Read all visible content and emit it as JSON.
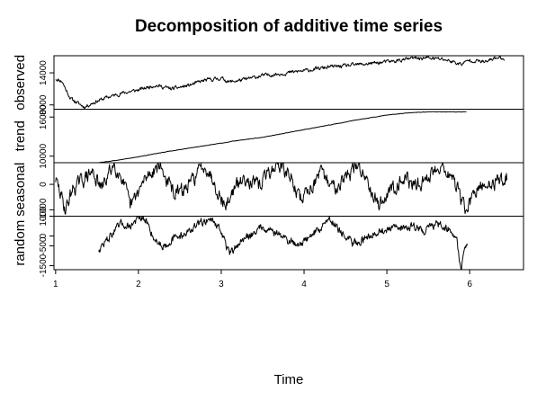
{
  "chart_data": {
    "type": "line",
    "title": "Decomposition of additive time series",
    "xlabel": "Time",
    "xlim": [
      0.98,
      6.65
    ],
    "x_ticks": [
      1,
      2,
      3,
      4,
      5,
      6
    ],
    "grid": false,
    "panels": [
      {
        "name": "observed",
        "ylabel": "observed",
        "ylim": [
          7200,
          17200
        ],
        "y_ticks": [
          8000,
          14000
        ],
        "y_tick_labels": [
          "8000",
          "14000"
        ],
        "x_range": [
          1.0,
          6.42
        ],
        "keypoints": [
          [
            1.0,
            12900
          ],
          [
            1.08,
            12400
          ],
          [
            1.12,
            11000
          ],
          [
            1.18,
            9200
          ],
          [
            1.25,
            8500
          ],
          [
            1.35,
            7600
          ],
          [
            1.45,
            8400
          ],
          [
            1.6,
            9300
          ],
          [
            1.8,
            10200
          ],
          [
            2.0,
            10800
          ],
          [
            2.2,
            11700
          ],
          [
            2.4,
            11000
          ],
          [
            2.6,
            11600
          ],
          [
            2.8,
            12600
          ],
          [
            3.0,
            13000
          ],
          [
            3.1,
            12300
          ],
          [
            3.3,
            12800
          ],
          [
            3.5,
            13500
          ],
          [
            3.7,
            13800
          ],
          [
            3.9,
            14200
          ],
          [
            4.1,
            14600
          ],
          [
            4.3,
            15100
          ],
          [
            4.5,
            15300
          ],
          [
            4.7,
            15600
          ],
          [
            4.9,
            15900
          ],
          [
            5.1,
            16200
          ],
          [
            5.3,
            16700
          ],
          [
            5.5,
            16800
          ],
          [
            5.7,
            16500
          ],
          [
            5.9,
            15600
          ],
          [
            6.0,
            16400
          ],
          [
            6.2,
            16000
          ],
          [
            6.3,
            16800
          ],
          [
            6.42,
            16700
          ]
        ],
        "noise": 280,
        "seed": 11
      },
      {
        "name": "trend",
        "ylabel": "trend",
        "ylim": [
          9000,
          17200
        ],
        "y_ticks": [
          10000,
          16000
        ],
        "y_tick_labels": [
          "10000",
          "16000"
        ],
        "x_range": [
          1.52,
          5.96
        ],
        "keypoints": [
          [
            1.52,
            9000
          ],
          [
            1.7,
            9300
          ],
          [
            2.0,
            9900
          ],
          [
            2.3,
            10600
          ],
          [
            2.6,
            11200
          ],
          [
            2.9,
            11800
          ],
          [
            3.2,
            12400
          ],
          [
            3.5,
            12900
          ],
          [
            3.8,
            13600
          ],
          [
            4.1,
            14300
          ],
          [
            4.4,
            15000
          ],
          [
            4.7,
            15700
          ],
          [
            5.0,
            16300
          ],
          [
            5.3,
            16700
          ],
          [
            5.5,
            16800
          ],
          [
            5.96,
            16800
          ]
        ],
        "noise": 25,
        "seed": 3
      },
      {
        "name": "seasonal",
        "ylabel": "seasonal",
        "ylim": [
          -1250,
          850
        ],
        "y_ticks": [
          -1000,
          0
        ],
        "y_tick_labels": [
          "-1000",
          "0"
        ],
        "x_range": [
          1.0,
          6.45
        ],
        "keypoints": [
          [
            1.0,
            200
          ],
          [
            1.05,
            -300
          ],
          [
            1.12,
            -1000
          ],
          [
            1.2,
            -200
          ],
          [
            1.3,
            100
          ],
          [
            1.45,
            500
          ],
          [
            1.55,
            -200
          ],
          [
            1.7,
            800
          ],
          [
            1.8,
            300
          ],
          [
            1.9,
            -900
          ],
          [
            2.0,
            -300
          ],
          [
            2.1,
            300
          ],
          [
            2.25,
            800
          ],
          [
            2.35,
            100
          ],
          [
            2.45,
            -400
          ],
          [
            2.6,
            -100
          ],
          [
            2.7,
            400
          ],
          [
            2.8,
            800
          ],
          [
            2.9,
            200
          ],
          [
            3.05,
            -900
          ],
          [
            3.15,
            -200
          ],
          [
            3.3,
            300
          ],
          [
            3.45,
            -100
          ],
          [
            3.55,
            400
          ],
          [
            3.7,
            800
          ],
          [
            3.85,
            200
          ],
          [
            3.95,
            -600
          ],
          [
            4.05,
            -200
          ],
          [
            4.2,
            400
          ],
          [
            4.35,
            -100
          ],
          [
            4.5,
            300
          ],
          [
            4.65,
            700
          ],
          [
            4.75,
            300
          ],
          [
            4.9,
            -800
          ],
          [
            5.05,
            -200
          ],
          [
            5.2,
            300
          ],
          [
            5.35,
            -100
          ],
          [
            5.5,
            300
          ],
          [
            5.65,
            800
          ],
          [
            5.8,
            200
          ],
          [
            5.95,
            -1000
          ],
          [
            6.1,
            -200
          ],
          [
            6.3,
            100
          ],
          [
            6.45,
            300
          ]
        ],
        "noise": 230,
        "seed": 29
      },
      {
        "name": "random",
        "ylabel": "random",
        "ylim": [
          -1700,
          1000
        ],
        "y_ticks": [
          -1500,
          -500,
          0,
          1000
        ],
        "y_tick_labels": [
          "-1500",
          "-500",
          "0",
          "1000"
        ],
        "x_range": [
          1.52,
          5.97
        ],
        "keypoints": [
          [
            1.52,
            -700
          ],
          [
            1.6,
            -300
          ],
          [
            1.7,
            200
          ],
          [
            1.8,
            600
          ],
          [
            1.9,
            500
          ],
          [
            2.0,
            900
          ],
          [
            2.1,
            700
          ],
          [
            2.2,
            -200
          ],
          [
            2.3,
            -500
          ],
          [
            2.4,
            -200
          ],
          [
            2.55,
            100
          ],
          [
            2.7,
            500
          ],
          [
            2.85,
            900
          ],
          [
            2.95,
            600
          ],
          [
            3.05,
            -300
          ],
          [
            3.1,
            -1000
          ],
          [
            3.2,
            -400
          ],
          [
            3.3,
            -100
          ],
          [
            3.5,
            500
          ],
          [
            3.65,
            200
          ],
          [
            3.8,
            -200
          ],
          [
            3.9,
            -400
          ],
          [
            4.0,
            -300
          ],
          [
            4.1,
            100
          ],
          [
            4.2,
            400
          ],
          [
            4.3,
            900
          ],
          [
            4.4,
            500
          ],
          [
            4.5,
            -100
          ],
          [
            4.6,
            -400
          ],
          [
            4.7,
            -200
          ],
          [
            4.85,
            200
          ],
          [
            5.0,
            300
          ],
          [
            5.15,
            400
          ],
          [
            5.3,
            500
          ],
          [
            5.45,
            300
          ],
          [
            5.6,
            600
          ],
          [
            5.75,
            400
          ],
          [
            5.8,
            100
          ],
          [
            5.85,
            -300
          ],
          [
            5.88,
            -1300
          ],
          [
            5.9,
            -1600
          ],
          [
            5.93,
            -900
          ],
          [
            5.97,
            -200
          ]
        ],
        "noise": 170,
        "seed": 47
      }
    ]
  }
}
